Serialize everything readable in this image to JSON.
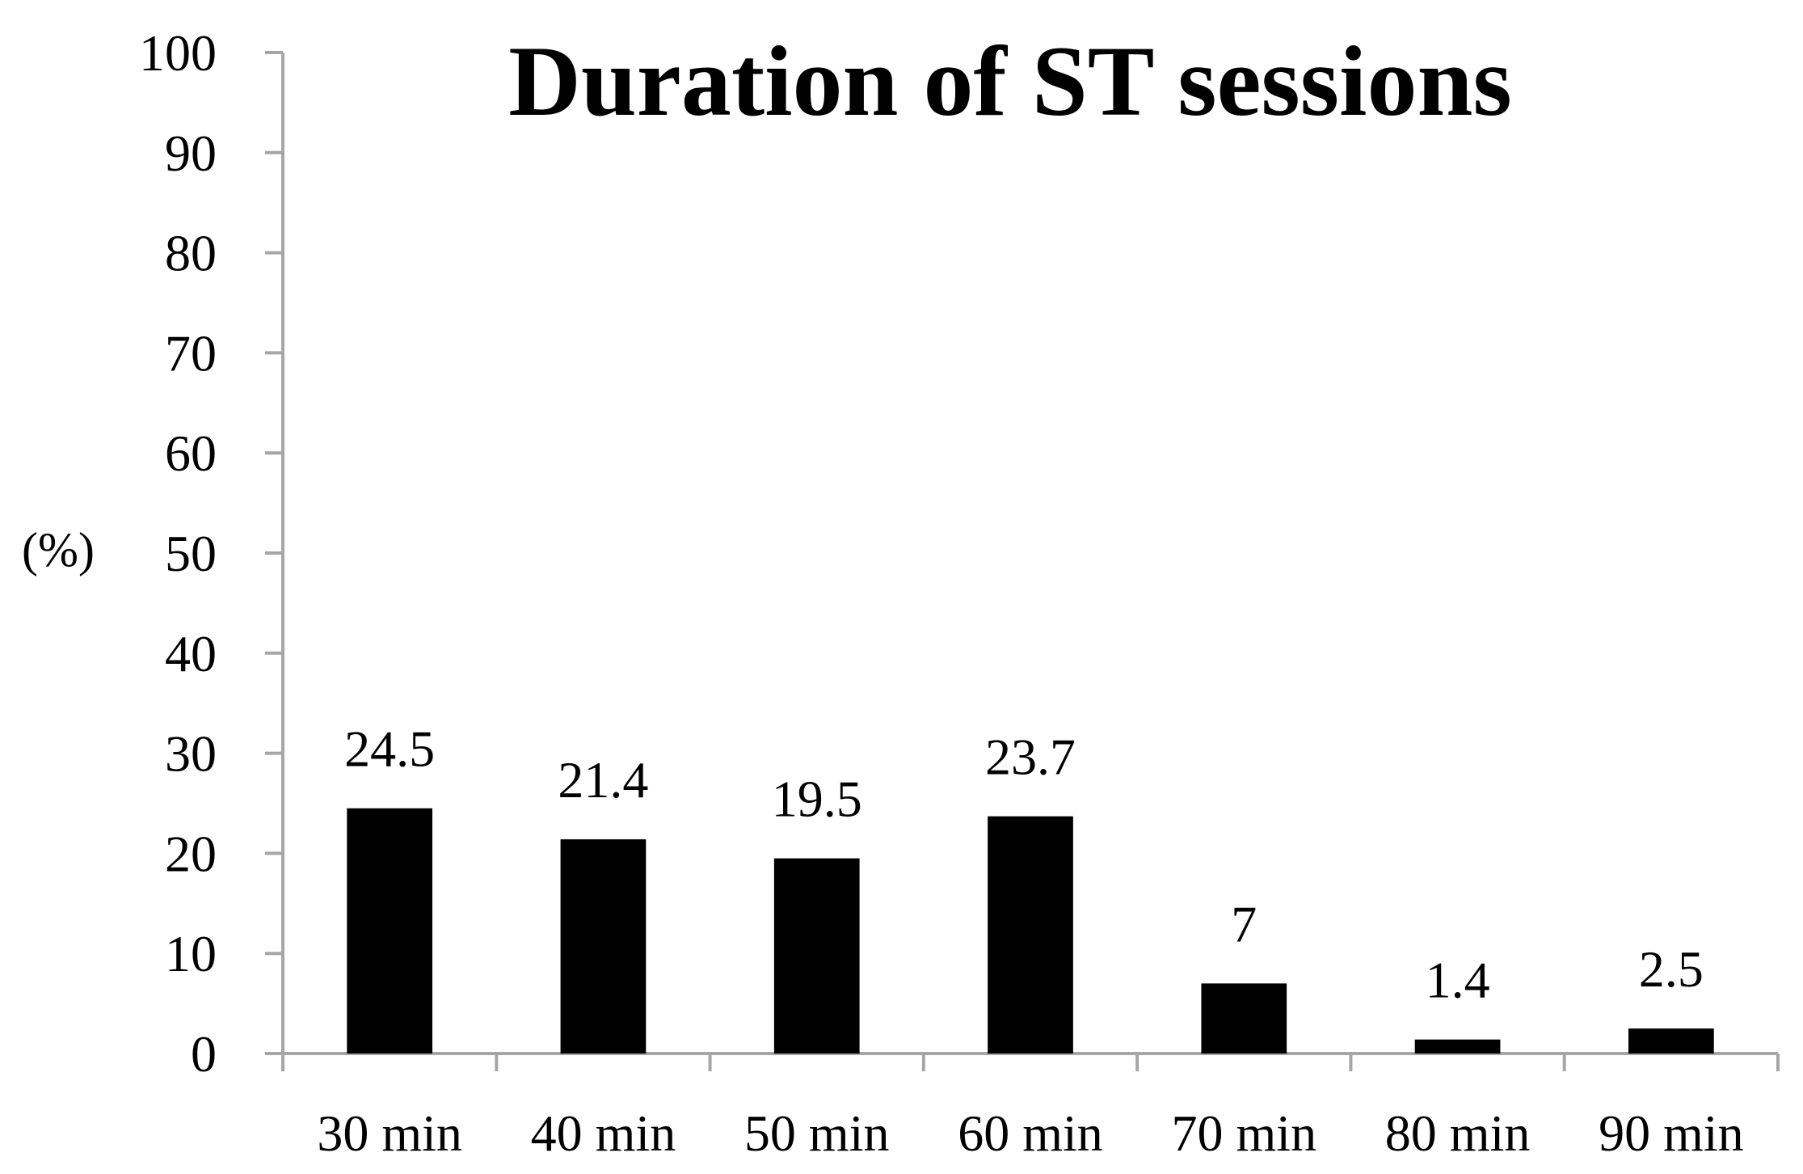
{
  "chart_data": {
    "type": "bar",
    "title": "Duration of ST sessions",
    "xlabel": "",
    "ylabel": "(%)",
    "categories": [
      "30 min",
      "40 min",
      "50 min",
      "60 min",
      "70 min",
      "80 min",
      "90 min"
    ],
    "values": [
      24.5,
      21.4,
      19.5,
      23.7,
      7,
      1.4,
      2.5
    ],
    "value_labels": [
      "24.5",
      "21.4",
      "19.5",
      "23.7",
      "7",
      "1.4",
      "2.5"
    ],
    "ylim": [
      0,
      100
    ],
    "yticks": [
      0,
      10,
      20,
      30,
      40,
      50,
      60,
      70,
      80,
      90,
      100
    ],
    "ytick_labels": [
      "0",
      "10",
      "20",
      "30",
      "40",
      "50",
      "60",
      "70",
      "80",
      "90",
      "100"
    ],
    "grid": false,
    "legend": "none",
    "bar_color": "#000000",
    "axis_color": "#a6a6a6"
  }
}
